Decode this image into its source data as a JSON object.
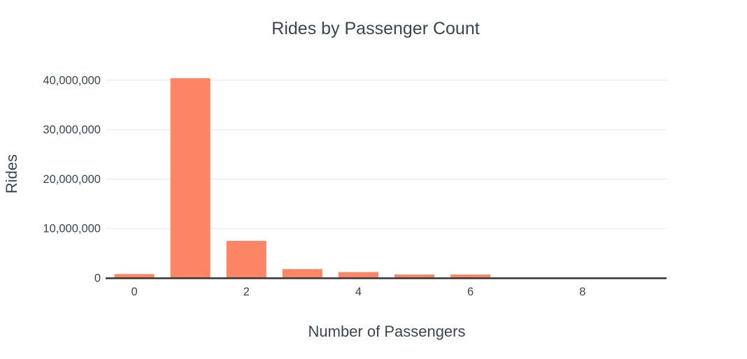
{
  "chart_data": {
    "type": "bar",
    "title": "Rides by Passenger Count",
    "xlabel": "Number of Passengers",
    "ylabel": "Rides",
    "x": [
      0,
      1,
      2,
      3,
      4,
      5,
      6,
      7,
      8,
      9
    ],
    "values": [
      800000,
      40400000,
      7500000,
      1800000,
      1200000,
      700000,
      700000,
      0,
      0,
      0
    ],
    "x_ticks": [
      0,
      2,
      4,
      6,
      8
    ],
    "x_tick_labels": [
      "0",
      "2",
      "4",
      "6",
      "8"
    ],
    "y_ticks": [
      0,
      10000000,
      20000000,
      30000000,
      40000000
    ],
    "y_tick_labels": [
      "0",
      "10,000,000",
      "20,000,000",
      "30,000,000",
      "40,000,000"
    ],
    "xlim": [
      -0.5,
      9.5
    ],
    "ylim": [
      0,
      43500000
    ],
    "grid": true,
    "legend": false,
    "colors": {
      "bar": "#fc8565",
      "grid": "#ebebeb",
      "axis_line": "#333333",
      "text": "#3a4554",
      "background": "#ffffff"
    }
  }
}
